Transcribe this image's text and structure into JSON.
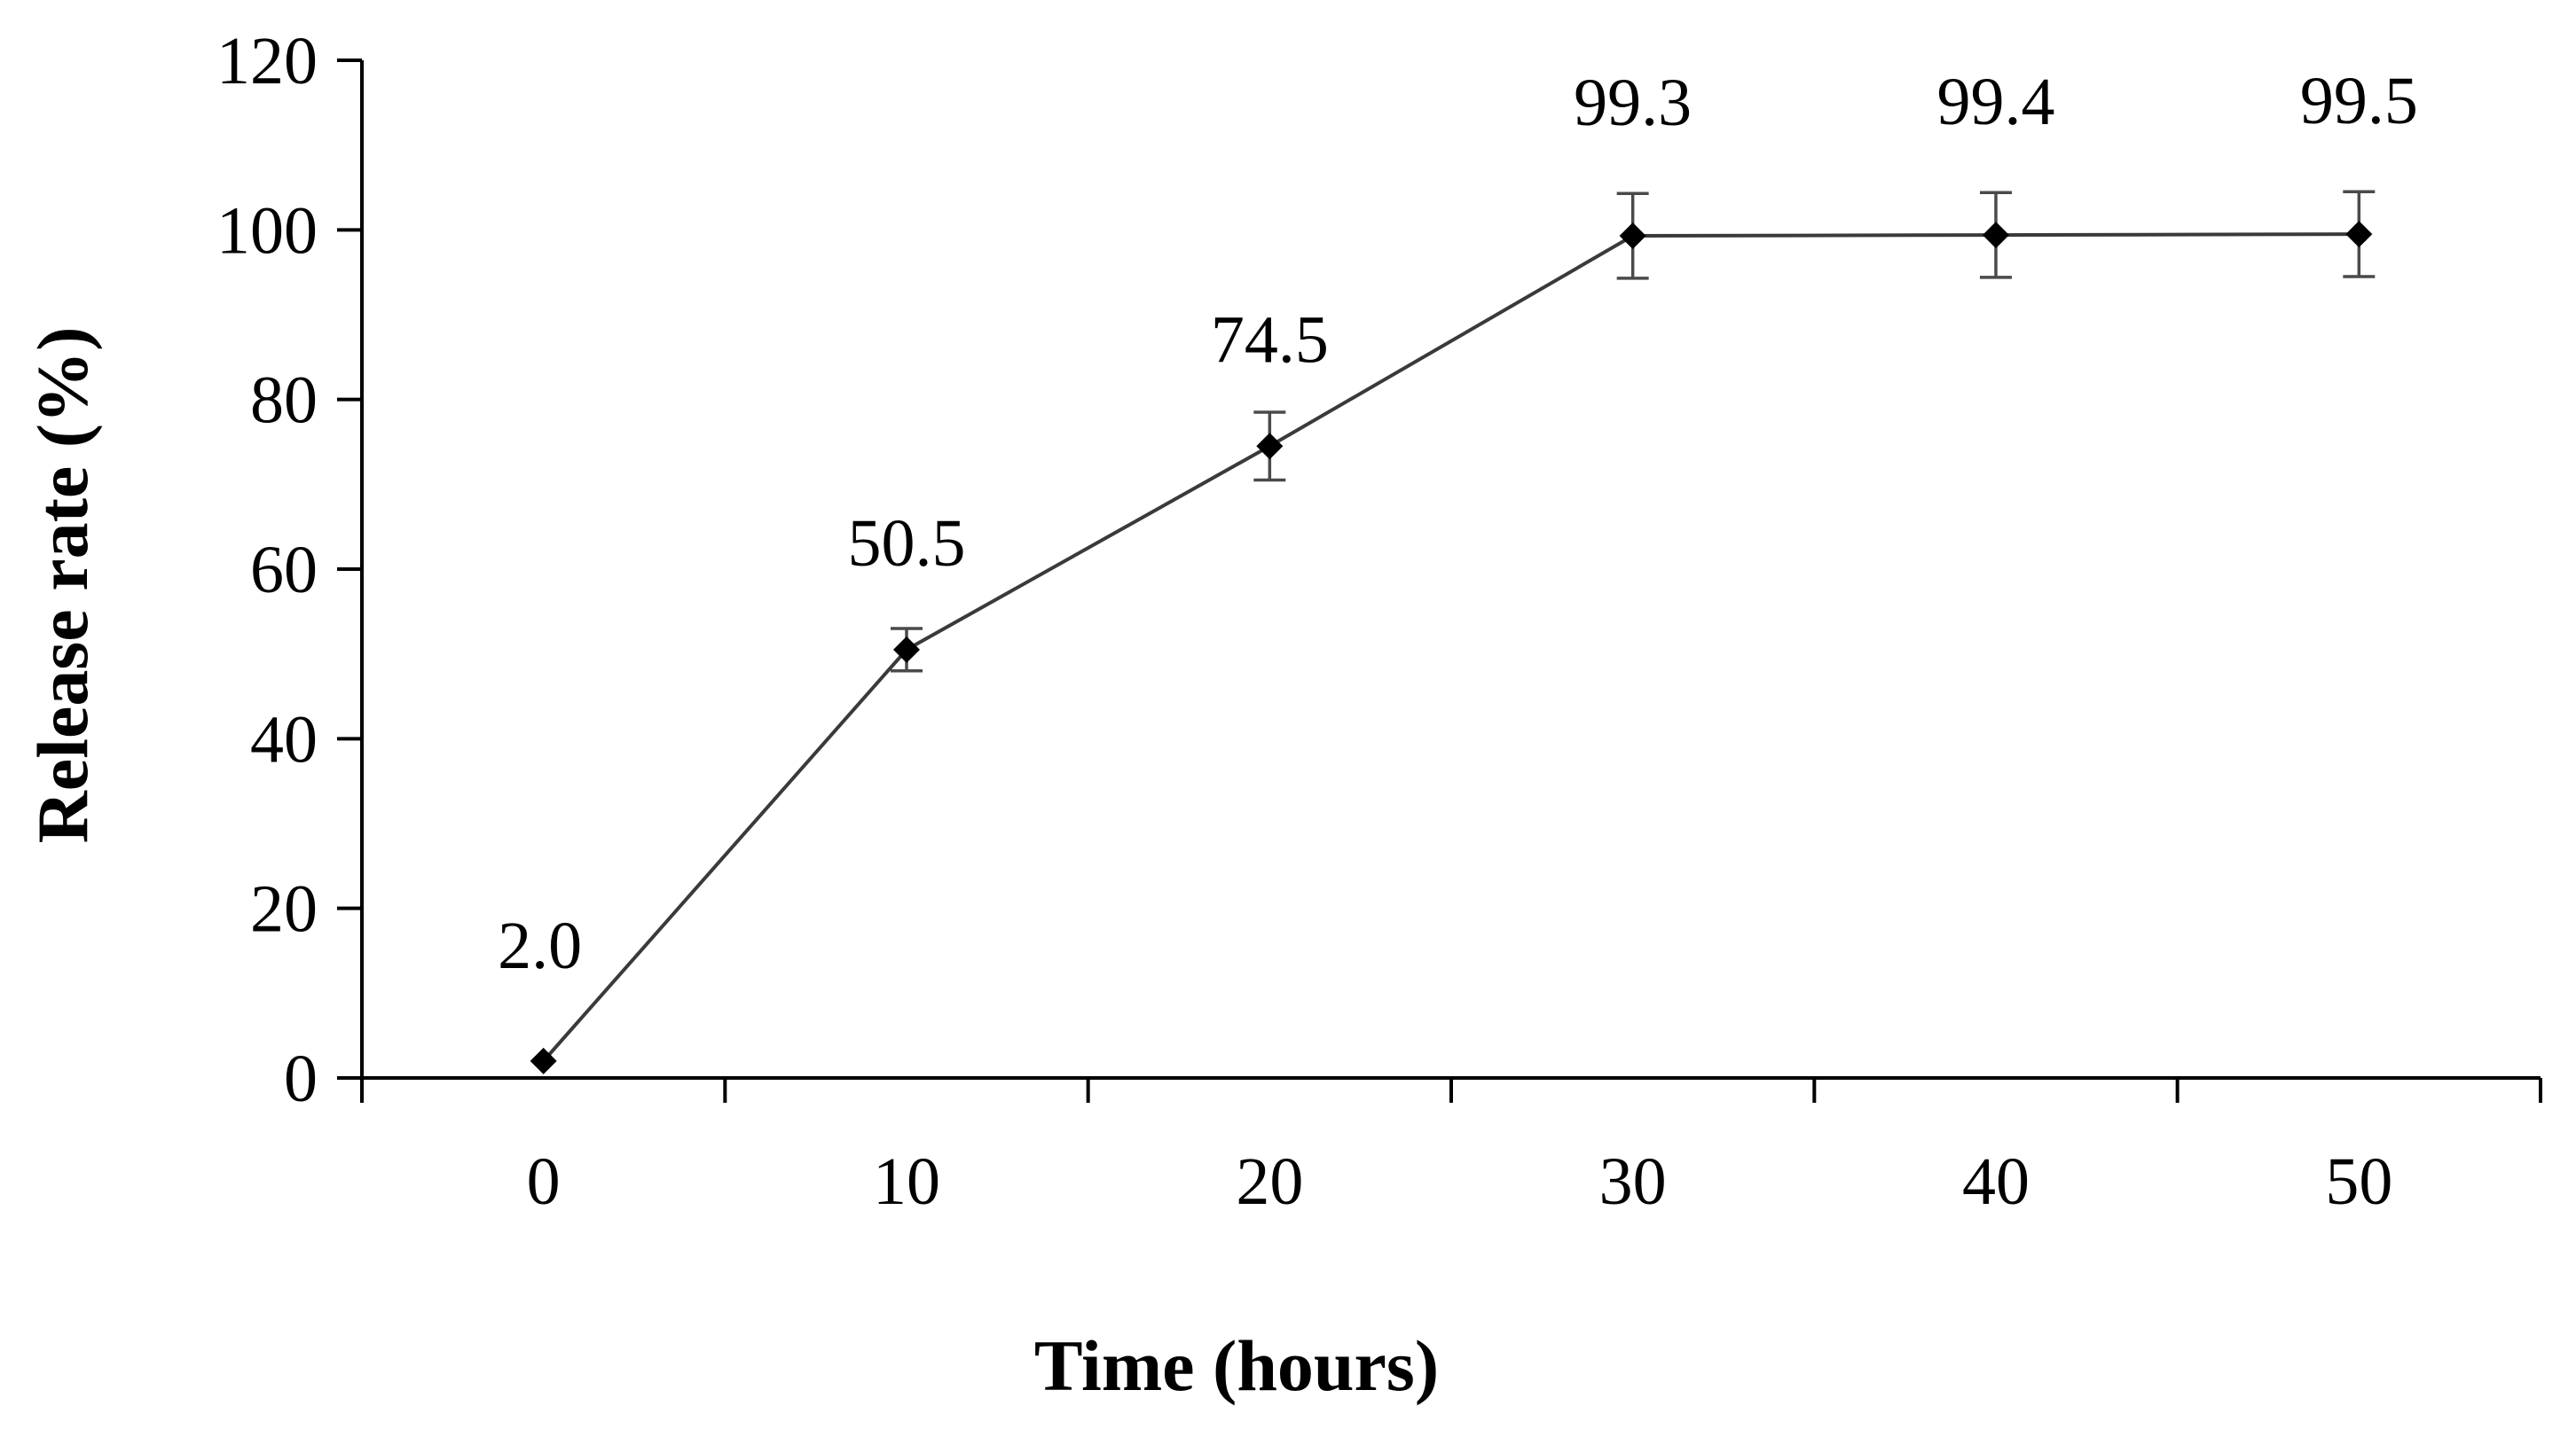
{
  "chart_data": {
    "type": "line",
    "title": "",
    "xlabel": "Time (hours)",
    "ylabel": "Release rate (%)",
    "xlim": [
      -5,
      55
    ],
    "ylim": [
      0,
      120
    ],
    "x_ticks": [
      0,
      10,
      20,
      30,
      40,
      50
    ],
    "y_ticks": [
      0,
      20,
      40,
      60,
      80,
      100,
      120
    ],
    "grid": false,
    "legend": "none",
    "series": [
      {
        "x": [
          0,
          10,
          20,
          30,
          40,
          50
        ],
        "values": [
          2.0,
          50.5,
          74.5,
          99.3,
          99.4,
          99.5
        ],
        "error": [
          0.5,
          2.5,
          4.0,
          5.0,
          5.0,
          5.0
        ],
        "data_labels": [
          "2.0",
          "50.5",
          "74.5",
          "99.3",
          "99.4",
          "99.5"
        ],
        "color": "#000000",
        "marker": "diamond"
      }
    ]
  }
}
